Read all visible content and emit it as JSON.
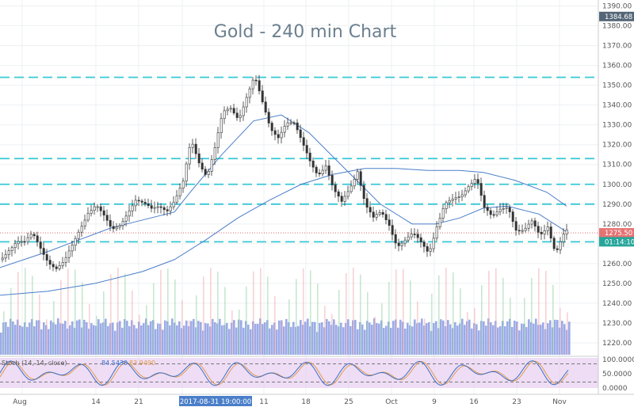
{
  "chart_data": {
    "type": "candlestick",
    "title": "Gold - 240 min Chart",
    "ylim": [
      1214,
      1393
    ],
    "y_ticks": [
      "1390.00",
      "1380.00",
      "1370.00",
      "1360.00",
      "1350.00",
      "1340.00",
      "1330.00",
      "1320.00",
      "1310.00",
      "1300.00",
      "1290.00",
      "1280.00",
      "1270.00",
      "1260.00",
      "1250.00",
      "1240.00",
      "1230.00",
      "1220.00"
    ],
    "x_labels": [
      "Aug",
      "14",
      "21",
      "Oct",
      "9",
      "16",
      "23",
      "Nov",
      "11",
      "18",
      "25"
    ],
    "crosshair_date_label": "2017-08-31 19:00:00",
    "horizontal_levels": [
      1354,
      1313,
      1300,
      1290,
      1271
    ],
    "last_price_label": "1275.50",
    "last_price": 1275.5,
    "countdown_label": "01:14:10",
    "countdown_level": 1271,
    "high_tag_label": "1384.68",
    "high_tag_level": 1384.68,
    "price_path": [
      [
        0,
        1262
      ],
      [
        10,
        1268
      ],
      [
        20,
        1272
      ],
      [
        30,
        1270
      ],
      [
        40,
        1274
      ],
      [
        50,
        1268
      ],
      [
        60,
        1262
      ],
      [
        70,
        1258
      ],
      [
        80,
        1260
      ],
      [
        90,
        1268
      ],
      [
        100,
        1278
      ],
      [
        110,
        1287
      ],
      [
        120,
        1290
      ],
      [
        130,
        1283
      ],
      [
        140,
        1276
      ],
      [
        150,
        1280
      ],
      [
        160,
        1287
      ],
      [
        170,
        1292
      ],
      [
        180,
        1289
      ],
      [
        190,
        1287
      ],
      [
        200,
        1290
      ],
      [
        210,
        1288
      ],
      [
        220,
        1292
      ],
      [
        230,
        1300
      ],
      [
        240,
        1322
      ],
      [
        250,
        1312
      ],
      [
        260,
        1305
      ],
      [
        270,
        1318
      ],
      [
        280,
        1335
      ],
      [
        290,
        1338
      ],
      [
        300,
        1334
      ],
      [
        310,
        1345
      ],
      [
        320,
        1354
      ],
      [
        330,
        1340
      ],
      [
        340,
        1328
      ],
      [
        350,
        1325
      ],
      [
        360,
        1332
      ],
      [
        370,
        1330
      ],
      [
        380,
        1320
      ],
      [
        390,
        1312
      ],
      [
        400,
        1306
      ],
      [
        410,
        1310
      ],
      [
        420,
        1296
      ],
      [
        430,
        1290
      ],
      [
        440,
        1298
      ],
      [
        450,
        1308
      ],
      [
        460,
        1290
      ],
      [
        470,
        1282
      ],
      [
        480,
        1285
      ],
      [
        490,
        1280
      ],
      [
        500,
        1270
      ],
      [
        510,
        1272
      ],
      [
        520,
        1274
      ],
      [
        530,
        1270
      ],
      [
        540,
        1266
      ],
      [
        550,
        1280
      ],
      [
        560,
        1290
      ],
      [
        570,
        1291
      ],
      [
        580,
        1293
      ],
      [
        590,
        1300
      ],
      [
        600,
        1305
      ],
      [
        610,
        1288
      ],
      [
        620,
        1282
      ],
      [
        630,
        1287
      ],
      [
        640,
        1290
      ],
      [
        650,
        1278
      ],
      [
        660,
        1276
      ],
      [
        670,
        1280
      ],
      [
        680,
        1274
      ],
      [
        690,
        1280
      ],
      [
        700,
        1266
      ],
      [
        710,
        1274
      ],
      [
        715,
        1276
      ]
    ],
    "ma_fast": [
      [
        0,
        1258
      ],
      [
        60,
        1266
      ],
      [
        100,
        1272
      ],
      [
        140,
        1278
      ],
      [
        180,
        1282
      ],
      [
        220,
        1286
      ],
      [
        240,
        1296
      ],
      [
        280,
        1315
      ],
      [
        320,
        1332
      ],
      [
        355,
        1335
      ],
      [
        390,
        1326
      ],
      [
        420,
        1314
      ],
      [
        450,
        1302
      ],
      [
        480,
        1290
      ],
      [
        520,
        1280
      ],
      [
        550,
        1280
      ],
      [
        580,
        1283
      ],
      [
        610,
        1288
      ],
      [
        640,
        1289
      ],
      [
        680,
        1285
      ],
      [
        715,
        1276
      ]
    ],
    "ma_slow": [
      [
        0,
        1244
      ],
      [
        60,
        1246
      ],
      [
        120,
        1250
      ],
      [
        180,
        1256
      ],
      [
        220,
        1262
      ],
      [
        260,
        1272
      ],
      [
        300,
        1283
      ],
      [
        340,
        1292
      ],
      [
        380,
        1300
      ],
      [
        420,
        1305
      ],
      [
        460,
        1308
      ],
      [
        500,
        1308
      ],
      [
        540,
        1307
      ],
      [
        580,
        1307
      ],
      [
        610,
        1306
      ],
      [
        650,
        1302
      ],
      [
        690,
        1296
      ],
      [
        715,
        1289
      ]
    ],
    "oscillator": {
      "label": "Stoch (14, 14, close)",
      "value_1": "84.5430",
      "value_2": "83.9490",
      "ylim": [
        0,
        100
      ],
      "levels": [
        80,
        20
      ],
      "ticks": [
        "100.0000",
        "50.0000",
        "0.0000"
      ]
    },
    "colors": {
      "up": "#26a69a",
      "down": "#ef5350",
      "level_line": "#38c7d6",
      "ma_line": "#4a7ec9",
      "volume": "#7b8fe0",
      "osc_band": "#e3c6ef",
      "osc_line_1": "#3a6fc8",
      "osc_line_2": "#e59a4c",
      "price_tag": "#e57373",
      "countdown_tag": "#26a69a",
      "high_tag": "#556677"
    }
  }
}
